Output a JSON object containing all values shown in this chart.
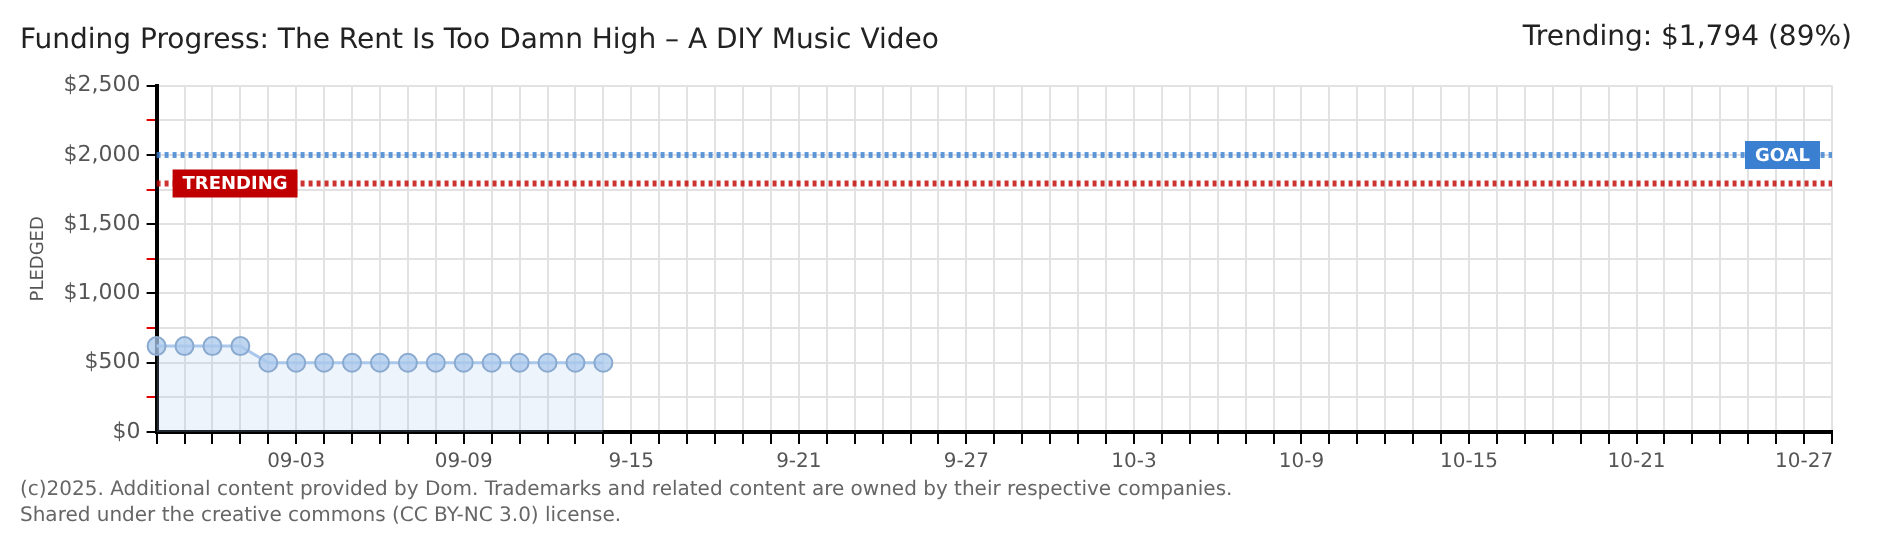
{
  "chart_data": {
    "type": "area",
    "title": "Funding Progress: The Rent Is Too Damn High – A DIY Music Video",
    "ylabel": "PLEDGED",
    "annotations": [
      "Trending: $1,794 (89%)",
      "(c)2025. Additional content provided by Dom. Trademarks and related content are owned by their respective companies.",
      "Shared under the creative commons (CC BY-NC 3.0) license."
    ],
    "x": [
      "--08-29",
      "--08-30",
      "--08-31",
      "--09-01",
      "--09-02",
      "--09-03",
      "--09-04",
      "--09-05",
      "--09-06",
      "--09-07",
      "--09-08",
      "--09-09",
      "--09-10",
      "--09-11",
      "--09-12",
      "--09-13",
      "--09-14"
    ],
    "series": [
      {
        "color": "#a9c8ec",
        "values": [
          620,
          620,
          620,
          620,
          500,
          500,
          500,
          500,
          500,
          500,
          500,
          500,
          500,
          500,
          500,
          500,
          500
        ]
      }
    ],
    "xlim": [
      "--08-29",
      "--10-28"
    ],
    "xticks": [
      {
        "value": "--08-29",
        "label": null
      },
      {
        "value": "--08-30",
        "label": null
      },
      {
        "value": "--08-31",
        "label": null
      },
      {
        "value": "--09-01",
        "label": null
      },
      {
        "value": "--09-02",
        "label": null
      },
      {
        "value": "--09-03",
        "label": "09-03"
      },
      {
        "value": "--09-04",
        "label": null
      },
      {
        "value": "--09-05",
        "label": null
      },
      {
        "value": "--09-06",
        "label": null
      },
      {
        "value": "--09-07",
        "label": null
      },
      {
        "value": "--09-08",
        "label": null
      },
      {
        "value": "--09-09",
        "label": "09-09"
      },
      {
        "value": "--09-10",
        "label": null
      },
      {
        "value": "--09-11",
        "label": null
      },
      {
        "value": "--09-12",
        "label": null
      },
      {
        "value": "--09-13",
        "label": null
      },
      {
        "value": "--09-14",
        "label": null
      },
      {
        "value": "--09-15",
        "label": "9-15"
      },
      {
        "value": "--09-16",
        "label": null
      },
      {
        "value": "--09-17",
        "label": null
      },
      {
        "value": "--09-18",
        "label": null
      },
      {
        "value": "--09-19",
        "label": null
      },
      {
        "value": "--09-20",
        "label": null
      },
      {
        "value": "--09-21",
        "label": "9-21"
      },
      {
        "value": "--09-22",
        "label": null
      },
      {
        "value": "--09-23",
        "label": null
      },
      {
        "value": "--09-24",
        "label": null
      },
      {
        "value": "--09-25",
        "label": null
      },
      {
        "value": "--09-26",
        "label": null
      },
      {
        "value": "--09-27",
        "label": "9-27"
      },
      {
        "value": "--09-28",
        "label": null
      },
      {
        "value": "--09-29",
        "label": null
      },
      {
        "value": "--09-30",
        "label": null
      },
      {
        "value": "--10-01",
        "label": null
      },
      {
        "value": "--10-02",
        "label": null
      },
      {
        "value": "--10-03",
        "label": "10-3"
      },
      {
        "value": "--10-04",
        "label": null
      },
      {
        "value": "--10-05",
        "label": null
      },
      {
        "value": "--10-06",
        "label": null
      },
      {
        "value": "--10-07",
        "label": null
      },
      {
        "value": "--10-08",
        "label": null
      },
      {
        "value": "--10-09",
        "label": "10-9"
      },
      {
        "value": "--10-10",
        "label": null
      },
      {
        "value": "--10-11",
        "label": null
      },
      {
        "value": "--10-12",
        "label": null
      },
      {
        "value": "--10-13",
        "label": null
      },
      {
        "value": "--10-14",
        "label": null
      },
      {
        "value": "--10-15",
        "label": "10-15"
      },
      {
        "value": "--10-16",
        "label": null
      },
      {
        "value": "--10-17",
        "label": null
      },
      {
        "value": "--10-18",
        "label": null
      },
      {
        "value": "--10-19",
        "label": null
      },
      {
        "value": "--10-20",
        "label": null
      },
      {
        "value": "--10-21",
        "label": "10-21"
      },
      {
        "value": "--10-22",
        "label": null
      },
      {
        "value": "--10-23",
        "label": null
      },
      {
        "value": "--10-24",
        "label": null
      },
      {
        "value": "--10-25",
        "label": null
      },
      {
        "value": "--10-26",
        "label": null
      },
      {
        "value": "--10-27",
        "label": "10-27"
      },
      {
        "value": "--10-28",
        "label": null
      }
    ],
    "ylim": [
      0,
      2500
    ],
    "yticks": [
      {
        "value": 0,
        "label": "$0"
      },
      {
        "value": 250,
        "label": null
      },
      {
        "value": 500,
        "label": "$500"
      },
      {
        "value": 750,
        "label": null
      },
      {
        "value": 1000,
        "label": "$1,000"
      },
      {
        "value": 1250,
        "label": null
      },
      {
        "value": 1500,
        "label": "$1,500"
      },
      {
        "value": 1750,
        "label": null
      },
      {
        "value": 2000,
        "label": "$2,000"
      },
      {
        "value": 2250,
        "label": null
      },
      {
        "value": 2500,
        "label": "$2,500"
      }
    ],
    "ref_lines": [
      {
        "axis": "y",
        "value": 2000,
        "label": "GOAL",
        "color": "#3b7fd0",
        "line_style": "dotted"
      },
      {
        "axis": "y",
        "value": 1794,
        "label": "TRENDING",
        "color": "#c00000",
        "line_style": "dotted"
      }
    ],
    "grid": true,
    "legend": false,
    "marker": "circle",
    "line_style": "solid"
  }
}
